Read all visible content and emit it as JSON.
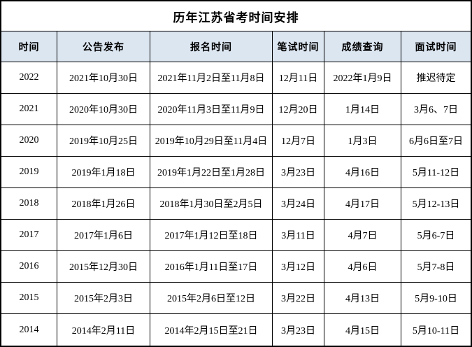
{
  "title": "历年江苏省考时间安排",
  "colors": {
    "header_bg": "#dce6f1",
    "border": "#000000",
    "row_bg": "#ffffff",
    "text": "#000000"
  },
  "chart_data": {
    "type": "table",
    "title": "历年江苏省考时间安排",
    "columns": [
      "时间",
      "公告发布",
      "报名时间",
      "笔试时间",
      "成绩查询",
      "面试时间"
    ],
    "rows": [
      [
        "2022",
        "2021年10月30日",
        "2021年11月2日至11月8日",
        "12月11日",
        "2022年1月9日",
        "推迟待定"
      ],
      [
        "2021",
        "2020年10月30日",
        "2020年11月3日至11月9日",
        "12月20日",
        "1月14日",
        "3月6、7日"
      ],
      [
        "2020",
        "2019年10月25日",
        "2019年10月29日至11月4日",
        "12月7日",
        "1月3日",
        "6月6日至7日"
      ],
      [
        "2019",
        "2019年1月18日",
        "2019年1月22日至1月28日",
        "3月23日",
        "4月16日",
        "5月11-12日"
      ],
      [
        "2018",
        "2018年1月26日",
        "2018年1月30日至2月5日",
        "3月24日",
        "4月17日",
        "5月12-13日"
      ],
      [
        "2017",
        "2017年1月6日",
        "2017年1月12日至18日",
        "3月11日",
        "4月7日",
        "5月6-7日"
      ],
      [
        "2016",
        "2015年12月30日",
        "2016年1月11日至17日",
        "3月12日",
        "4月6日",
        "5月7-8日"
      ],
      [
        "2015",
        "2015年2月3日",
        "2015年2月6日至12日",
        "3月22日",
        "4月13日",
        "5月9-10日"
      ],
      [
        "2014",
        "2014年2月11日",
        "2014年2月15日至21日",
        "3月23日",
        "4月15日",
        "5月10-11日"
      ]
    ]
  }
}
